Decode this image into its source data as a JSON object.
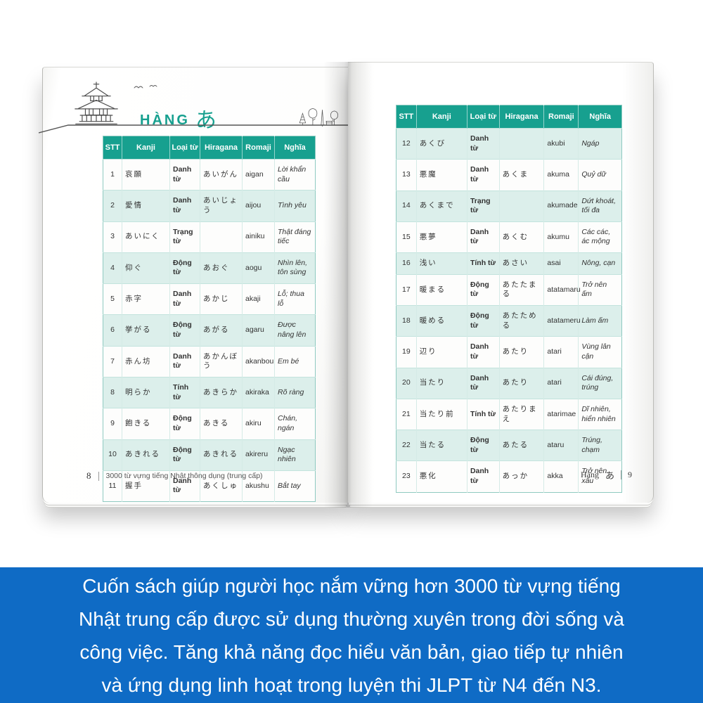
{
  "colors": {
    "teal": "#17a08f",
    "alt_row": "#dcefeb",
    "banner_blue": "#0f6bc5",
    "banner_text": "#ffffff"
  },
  "left_page": {
    "section_title": "HÀNG",
    "section_kana": "あ",
    "illustrations": [
      "pagoda",
      "birds",
      "trees",
      "ground-line"
    ],
    "table": {
      "headers": [
        "STT",
        "Kanji",
        "Loại từ",
        "Hiragana",
        "Romaji",
        "Nghĩa"
      ],
      "rows": [
        {
          "stt": "1",
          "kanji": "哀願",
          "type": "Danh từ",
          "hiragana": "あいがん",
          "romaji": "aigan",
          "meaning": "Lời khẩn cầu"
        },
        {
          "stt": "2",
          "kanji": "愛情",
          "type": "Danh từ",
          "hiragana": "あいじょう",
          "romaji": "aijou",
          "meaning": "Tình yêu"
        },
        {
          "stt": "3",
          "kanji": "あいにく",
          "type": "Trạng từ",
          "hiragana": "",
          "romaji": "ainiku",
          "meaning": "Thật đáng tiếc"
        },
        {
          "stt": "4",
          "kanji": "仰ぐ",
          "type": "Động từ",
          "hiragana": "あおぐ",
          "romaji": "aogu",
          "meaning": "Nhìn lên, tôn sùng"
        },
        {
          "stt": "5",
          "kanji": "赤字",
          "type": "Danh từ",
          "hiragana": "あかじ",
          "romaji": "akaji",
          "meaning": "Lỗ; thua lỗ"
        },
        {
          "stt": "6",
          "kanji": "挙がる",
          "type": "Động từ",
          "hiragana": "あがる",
          "romaji": "agaru",
          "meaning": "Được nâng lên"
        },
        {
          "stt": "7",
          "kanji": "赤ん坊",
          "type": "Danh từ",
          "hiragana": "あかんぼう",
          "romaji": "akanbou",
          "meaning": "Em bé"
        },
        {
          "stt": "8",
          "kanji": "明らか",
          "type": "Tính từ",
          "hiragana": "あきらか",
          "romaji": "akiraka",
          "meaning": "Rõ ràng"
        },
        {
          "stt": "9",
          "kanji": "飽きる",
          "type": "Động từ",
          "hiragana": "あきる",
          "romaji": "akiru",
          "meaning": "Chán, ngán"
        },
        {
          "stt": "10",
          "kanji": "あきれる",
          "type": "Động từ",
          "hiragana": "あきれる",
          "romaji": "akireru",
          "meaning": "Ngạc nhiên"
        },
        {
          "stt": "11",
          "kanji": "握手",
          "type": "Danh từ",
          "hiragana": "あくしゅ",
          "romaji": "akushu",
          "meaning": "Bắt tay"
        }
      ]
    },
    "footer": {
      "page_number": "8",
      "book_title": "3000 từ vựng tiếng Nhật thông dụng (trung cấp)"
    }
  },
  "right_page": {
    "table": {
      "headers": [
        "STT",
        "Kanji",
        "Loại từ",
        "Hiragana",
        "Romaji",
        "Nghĩa"
      ],
      "rows": [
        {
          "stt": "12",
          "kanji": "あくび",
          "type": "Danh từ",
          "hiragana": "",
          "romaji": "akubi",
          "meaning": "Ngáp"
        },
        {
          "stt": "13",
          "kanji": "悪魔",
          "type": "Danh từ",
          "hiragana": "あくま",
          "romaji": "akuma",
          "meaning": "Quỷ dữ"
        },
        {
          "stt": "14",
          "kanji": "あくまで",
          "type": "Trạng từ",
          "hiragana": "",
          "romaji": "akumade",
          "meaning": "Dứt khoát, tối đa"
        },
        {
          "stt": "15",
          "kanji": "悪夢",
          "type": "Danh từ",
          "hiragana": "あくむ",
          "romaji": "akumu",
          "meaning": "Các các, ác mộng"
        },
        {
          "stt": "16",
          "kanji": "浅い",
          "type": "Tính từ",
          "hiragana": "あさい",
          "romaji": "asai",
          "meaning": "Nông, cạn"
        },
        {
          "stt": "17",
          "kanji": "暖まる",
          "type": "Động từ",
          "hiragana": "あたたまる",
          "romaji": "atatamaru",
          "meaning": "Trở nên ấm"
        },
        {
          "stt": "18",
          "kanji": "暖める",
          "type": "Động từ",
          "hiragana": "あたためる",
          "romaji": "atatameru",
          "meaning": "Làm ấm"
        },
        {
          "stt": "19",
          "kanji": "辺り",
          "type": "Danh từ",
          "hiragana": "あたり",
          "romaji": "atari",
          "meaning": "Vùng lân cận"
        },
        {
          "stt": "20",
          "kanji": "当たり",
          "type": "Danh từ",
          "hiragana": "あたり",
          "romaji": "atari",
          "meaning": "Cái đúng, trúng"
        },
        {
          "stt": "21",
          "kanji": "当たり前",
          "type": "Tính từ",
          "hiragana": "あたりまえ",
          "romaji": "atarimae",
          "meaning": "Dĩ nhiên, hiển nhiên"
        },
        {
          "stt": "22",
          "kanji": "当たる",
          "type": "Động từ",
          "hiragana": "あたる",
          "romaji": "ataru",
          "meaning": "Trúng, chạm"
        },
        {
          "stt": "23",
          "kanji": "悪化",
          "type": "Danh từ",
          "hiragana": "あっか",
          "romaji": "akka",
          "meaning": "Trở nên xấu"
        }
      ]
    },
    "footer": {
      "section": "Hàng",
      "kana": "あ",
      "page_number": "9"
    }
  },
  "banner": {
    "lines": [
      "Cuốn sách giúp người học nắm vững hơn 3000 từ vựng tiếng",
      "Nhật trung cấp được sử dụng thường xuyên trong đời sống và",
      "công việc. Tăng khả năng đọc hiểu văn bản, giao tiếp tự nhiên",
      "và ứng dụng linh hoạt trong luyện thi JLPT từ N4 đến N3."
    ]
  }
}
